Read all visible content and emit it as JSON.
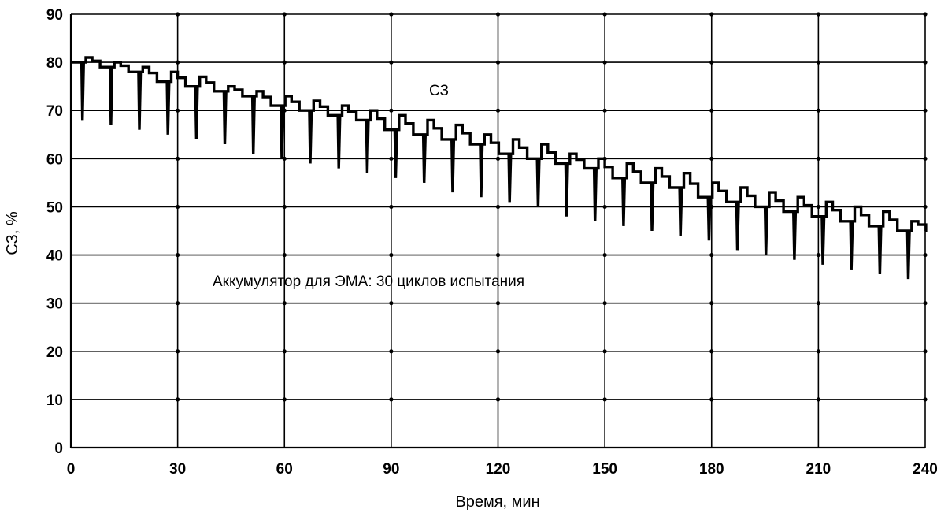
{
  "chart_data": {
    "type": "line",
    "title": "",
    "xlabel": "Время, мин",
    "ylabel": "СЗ, %",
    "xlim": [
      0,
      240
    ],
    "ylim": [
      0,
      90
    ],
    "x_ticks": [
      0,
      30,
      60,
      90,
      120,
      150,
      180,
      210,
      240
    ],
    "y_ticks": [
      0,
      10,
      20,
      30,
      40,
      50,
      60,
      70,
      80,
      90
    ],
    "grid": true,
    "annotations": [
      "СЗ",
      "Аккумулятор для ЭМА: 30 циклов испытания"
    ],
    "cycle_count": 30,
    "cycle_period_min": 8,
    "series": [
      {
        "name": "СЗ",
        "cycle_start_x": [
          3,
          11,
          19,
          27,
          35,
          43,
          51,
          59,
          67,
          75,
          83,
          91,
          99,
          107,
          115,
          123,
          131,
          139,
          147,
          155,
          163,
          171,
          179,
          187,
          195,
          203,
          211,
          219,
          227,
          235
        ],
        "cycle_start_soc": [
          80,
          79,
          78,
          76,
          75,
          74,
          73,
          71,
          70,
          69,
          68,
          66,
          65,
          64,
          63,
          61,
          60,
          59,
          58,
          56,
          55,
          54,
          52,
          51,
          50,
          49,
          48,
          47,
          46,
          45
        ],
        "cycle_min_soc": [
          68,
          67,
          66,
          65,
          64,
          63,
          61,
          60,
          59,
          58,
          57,
          56,
          55,
          53,
          52,
          51,
          50,
          48,
          47,
          46,
          45,
          44,
          43,
          41,
          40,
          39,
          38,
          37,
          36,
          35
        ],
        "cycle_peak_soc": [
          81,
          80,
          79,
          78,
          77,
          75,
          74,
          73,
          72,
          71,
          70,
          69,
          68,
          67,
          65,
          64,
          63,
          61,
          60,
          59,
          58,
          57,
          55,
          54,
          53,
          52,
          51,
          50,
          49,
          47
        ],
        "end_soc": 45
      }
    ]
  }
}
